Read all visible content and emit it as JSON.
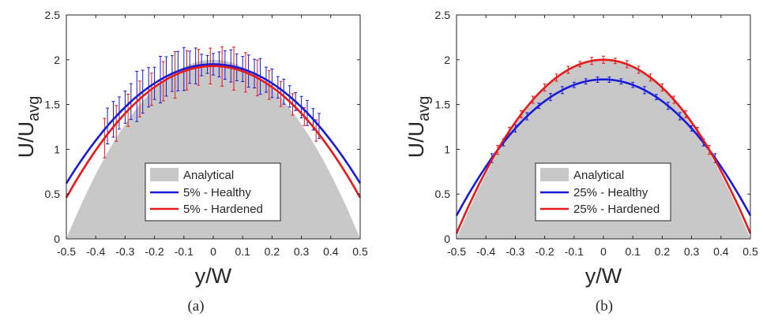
{
  "figure": {
    "labels": [
      "(a)",
      "(b)"
    ]
  },
  "chart_data": [
    {
      "type": "line",
      "panel": "(a)",
      "xlabel": "y/W",
      "ylabel": {
        "base": "U/U",
        "sub": "avg"
      },
      "xlim": [
        -0.5,
        0.5
      ],
      "ylim": [
        0,
        2.5
      ],
      "xticks": [
        "-0.5",
        "-0.4",
        "-0.3",
        "-0.2",
        "-0.1",
        "0",
        "0.1",
        "0.2",
        "0.3",
        "0.4",
        "0.5"
      ],
      "yticks": [
        "0",
        "0.5",
        "1",
        "1.5",
        "2",
        "2.5"
      ],
      "grid": false,
      "legend_position": "bottom-center",
      "analytical": {
        "name": "Analytical",
        "color": "#c8c8c8",
        "peak": 2.0
      },
      "series": [
        {
          "name": "5% - Healthy",
          "color": "#1a1ad9",
          "peak": 1.95,
          "edge": 0.62,
          "err_x": [
            -0.36,
            -0.34,
            -0.32,
            -0.3,
            -0.28,
            -0.26,
            -0.24,
            -0.22,
            -0.2,
            -0.18,
            -0.16,
            -0.14,
            -0.12,
            -0.1,
            -0.08,
            -0.06,
            -0.04,
            -0.02,
            0,
            0.02,
            0.04,
            0.06,
            0.08,
            0.1,
            0.12,
            0.14,
            0.16,
            0.18,
            0.2,
            0.22,
            0.24,
            0.26,
            0.28,
            0.3,
            0.32,
            0.34,
            0.36
          ],
          "err": [
            0.2,
            0.2,
            0.18,
            0.18,
            0.2,
            0.28,
            0.24,
            0.22,
            0.18,
            0.26,
            0.22,
            0.2,
            0.22,
            0.24,
            0.18,
            0.2,
            0.12,
            0.1,
            0.12,
            0.14,
            0.16,
            0.18,
            0.15,
            0.14,
            0.18,
            0.16,
            0.2,
            0.14,
            0.16,
            0.12,
            0.14,
            0.12,
            0.1,
            0.12,
            0.14,
            0.12,
            0.14
          ]
        },
        {
          "name": "5% - Hardened",
          "color": "#e61a1a",
          "peak": 1.93,
          "edge": 0.46,
          "err_x": [
            -0.37,
            -0.33,
            -0.29,
            -0.25,
            -0.21,
            -0.17,
            -0.13,
            -0.09,
            -0.05,
            -0.01,
            0.03,
            0.07,
            0.11,
            0.15,
            0.19,
            0.23,
            0.27,
            0.31,
            0.35
          ],
          "err": [
            0.22,
            0.2,
            0.18,
            0.2,
            0.18,
            0.22,
            0.26,
            0.22,
            0.2,
            0.2,
            0.22,
            0.24,
            0.22,
            0.2,
            0.16,
            0.14,
            0.12,
            0.1,
            0.12
          ]
        }
      ]
    },
    {
      "type": "line",
      "panel": "(b)",
      "xlabel": "y/W",
      "ylabel": {
        "base": "U/U",
        "sub": "avg"
      },
      "xlim": [
        -0.5,
        0.5
      ],
      "ylim": [
        0,
        2.5
      ],
      "xticks": [
        "-0.5",
        "-0.4",
        "-0.3",
        "-0.2",
        "-0.1",
        "0",
        "0.1",
        "0.2",
        "0.3",
        "0.4",
        "0.5"
      ],
      "yticks": [
        "0",
        "0.5",
        "1",
        "1.5",
        "2",
        "2.5"
      ],
      "grid": false,
      "legend_position": "bottom-center",
      "analytical": {
        "name": "Analytical",
        "color": "#c8c8c8",
        "peak": 2.0
      },
      "series": [
        {
          "name": "25% - Healthy",
          "color": "#1a1ad9",
          "peak": 1.78,
          "edge": 0.26,
          "err_x": [
            -0.38,
            -0.34,
            -0.3,
            -0.26,
            -0.22,
            -0.18,
            -0.14,
            -0.1,
            -0.06,
            -0.02,
            0.02,
            0.06,
            0.1,
            0.14,
            0.18,
            0.22,
            0.26,
            0.3,
            0.34,
            0.38
          ],
          "err": [
            0.05,
            0.04,
            0.04,
            0.04,
            0.03,
            0.04,
            0.04,
            0.03,
            0.03,
            0.03,
            0.03,
            0.03,
            0.03,
            0.04,
            0.03,
            0.04,
            0.04,
            0.03,
            0.04,
            0.05
          ]
        },
        {
          "name": "25% - Hardened",
          "color": "#e61a1a",
          "peak": 2.0,
          "edge": 0.06,
          "err_x": [
            -0.36,
            -0.32,
            -0.28,
            -0.24,
            -0.2,
            -0.16,
            -0.12,
            -0.08,
            -0.04,
            0,
            0.04,
            0.08,
            0.12,
            0.16,
            0.2,
            0.24,
            0.28,
            0.32,
            0.36
          ],
          "err": [
            0.05,
            0.04,
            0.04,
            0.04,
            0.04,
            0.04,
            0.04,
            0.03,
            0.04,
            0.04,
            0.03,
            0.04,
            0.04,
            0.04,
            0.04,
            0.04,
            0.04,
            0.04,
            0.05
          ]
        }
      ]
    }
  ]
}
